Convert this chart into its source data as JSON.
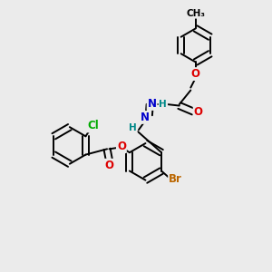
{
  "bg_color": "#ebebeb",
  "bond_color": "#000000",
  "bond_width": 1.4,
  "dbo": 0.12,
  "atom_colors": {
    "O": "#dd0000",
    "N": "#0000cc",
    "Br": "#bb6600",
    "Cl": "#00aa00",
    "H": "#008888",
    "C": "#000000"
  },
  "font_size": 8.5,
  "figsize": [
    3.0,
    3.0
  ],
  "dpi": 100
}
